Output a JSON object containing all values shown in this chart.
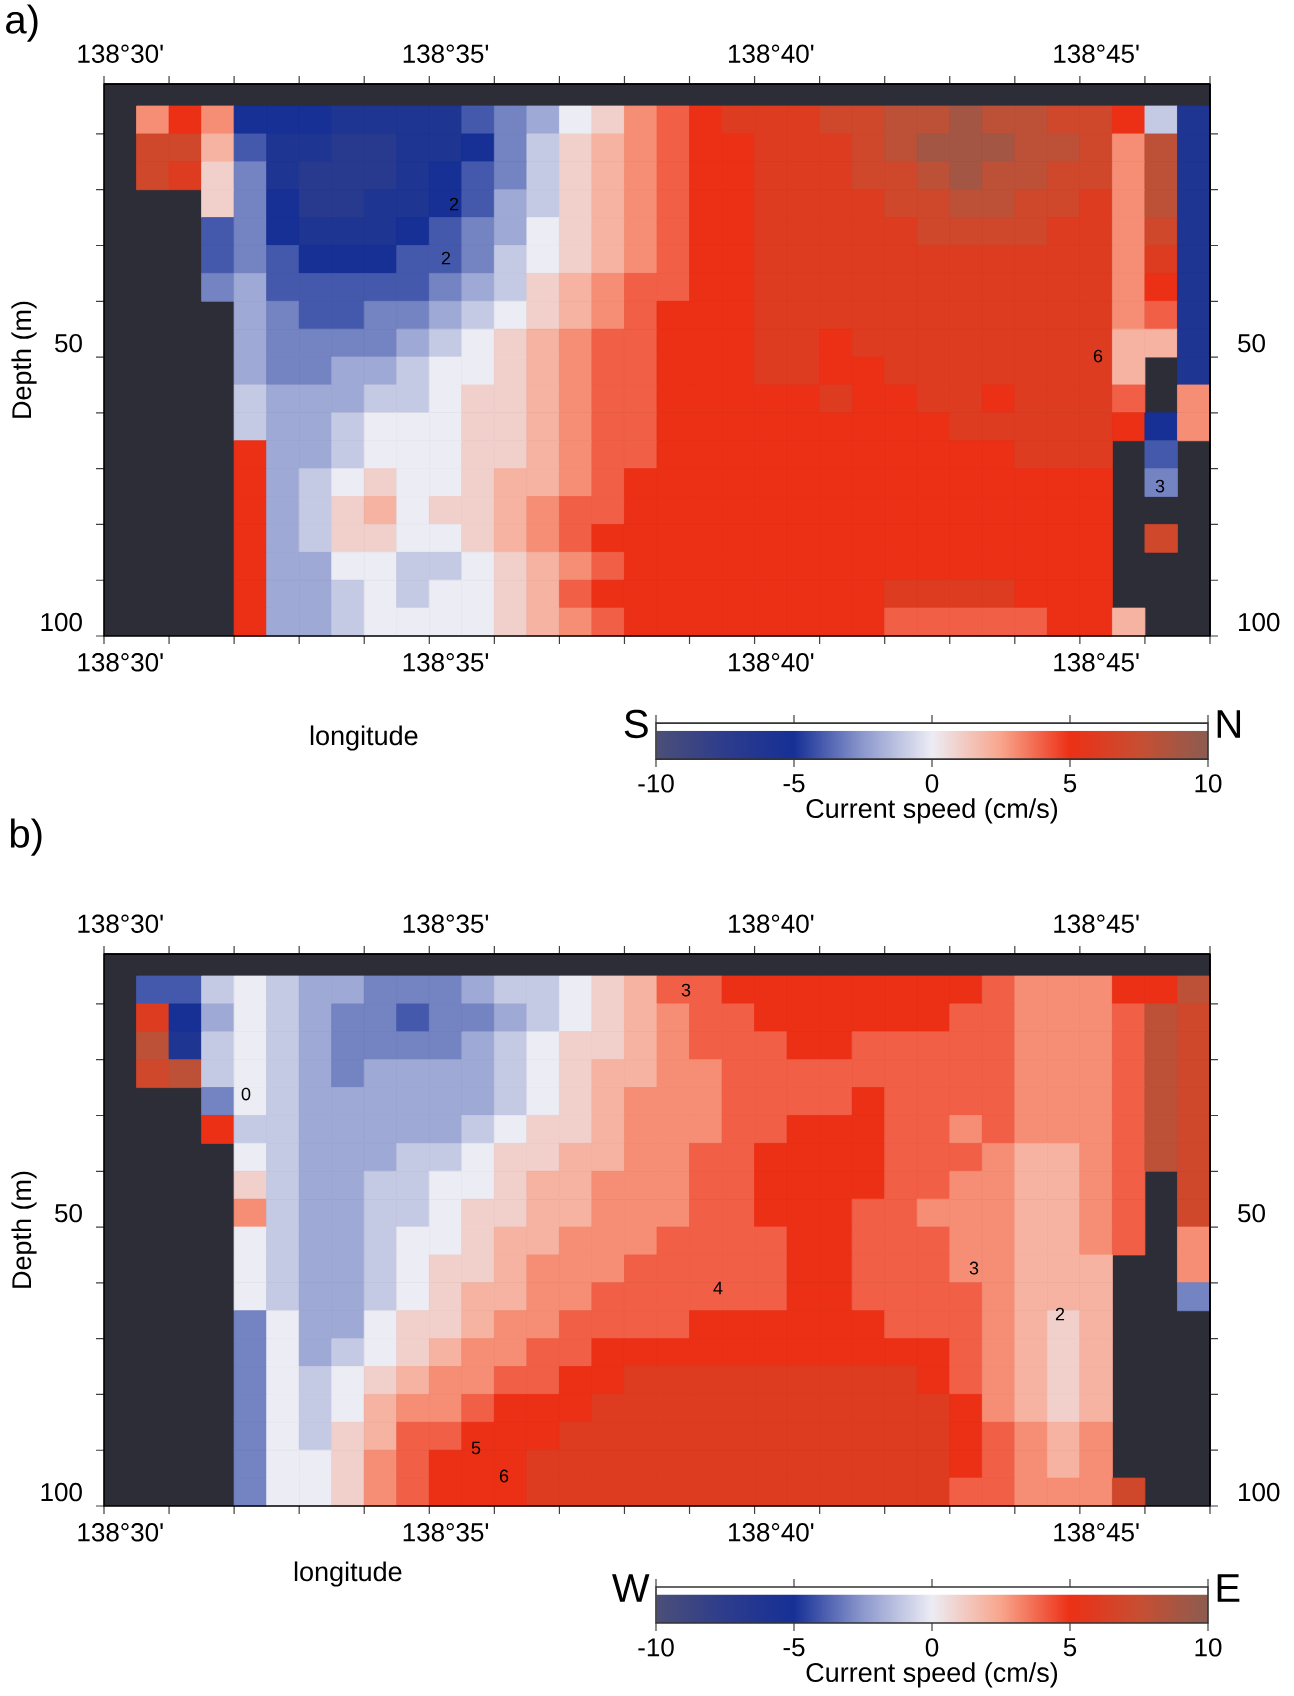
{
  "chart_data": [
    {
      "type": "heatmap",
      "title": "a)",
      "xlabel": "longitude",
      "ylabel": "Depth (m)",
      "clabel": "Current speed (cm/s)",
      "categories": [
        "138°30'",
        null,
        null,
        null,
        null,
        null,
        null,
        null,
        null,
        null,
        "138°35'",
        null,
        null,
        null,
        null,
        null,
        null,
        null,
        null,
        null,
        "138°40'",
        null,
        null,
        null,
        null,
        null,
        null,
        null,
        null,
        null,
        "138°45'",
        null,
        null,
        null
      ],
      "y_categories": [
        null,
        null,
        null,
        null,
        null,
        null,
        null,
        null,
        "50",
        null,
        null,
        null,
        null,
        null,
        null,
        null,
        null,
        null,
        "100"
      ],
      "y2_categories": [
        null,
        null,
        null,
        null,
        null,
        null,
        null,
        null,
        "50",
        null,
        null,
        null,
        null,
        null,
        null,
        null,
        null,
        null,
        "100"
      ],
      "cells": [
        [
          null,
          3,
          5,
          3,
          -5,
          -5,
          -5,
          -6,
          -6,
          -6,
          -6,
          -4,
          -3,
          -2,
          0,
          1,
          3,
          4,
          5,
          6,
          6,
          6,
          7,
          7,
          8,
          8,
          9,
          8,
          8,
          7,
          7,
          5,
          -1,
          -6
        ],
        [
          null,
          7,
          7,
          2,
          -4,
          -6,
          -6,
          -7,
          -7,
          -6,
          -6,
          -5,
          -3,
          -1,
          1,
          2,
          3,
          4,
          5,
          5,
          6,
          6,
          6,
          7,
          8,
          9,
          9,
          9,
          8,
          8,
          7,
          3,
          8,
          -6
        ],
        [
          null,
          7,
          6,
          1,
          -3,
          -6,
          -7,
          -7,
          -7,
          -6,
          -5,
          -4,
          -3,
          -1,
          1,
          2,
          3,
          4,
          5,
          5,
          6,
          6,
          6,
          7,
          7,
          8,
          9,
          8,
          8,
          7,
          7,
          3,
          8,
          -6
        ],
        [
          null,
          null,
          null,
          1,
          -3,
          -5,
          -7,
          -7,
          -6,
          -6,
          -5,
          -4,
          -2,
          -1,
          1,
          2,
          3,
          4,
          5,
          5,
          6,
          6,
          6,
          6,
          7,
          7,
          8,
          8,
          7,
          7,
          6,
          3,
          8,
          -6
        ],
        [
          null,
          null,
          null,
          -4,
          -3,
          -5,
          -6,
          -6,
          -6,
          -5,
          -4,
          -3,
          -2,
          0,
          1,
          2,
          3,
          4,
          5,
          5,
          6,
          6,
          6,
          6,
          6,
          7,
          7,
          7,
          7,
          6,
          6,
          3,
          7,
          -6
        ],
        [
          null,
          null,
          null,
          -4,
          -3,
          -4,
          -5,
          -5,
          -5,
          -4,
          -4,
          -3,
          -1,
          0,
          1,
          2,
          3,
          4,
          5,
          5,
          6,
          6,
          6,
          6,
          6,
          6,
          6,
          6,
          6,
          6,
          6,
          3,
          6,
          -6
        ],
        [
          null,
          null,
          null,
          -3,
          -2,
          -4,
          -4,
          -4,
          -4,
          -4,
          -3,
          -2,
          -1,
          1,
          2,
          3,
          4,
          4,
          5,
          5,
          6,
          6,
          6,
          6,
          6,
          6,
          6,
          6,
          6,
          6,
          6,
          3,
          5,
          -6
        ],
        [
          null,
          null,
          null,
          null,
          -2,
          -3,
          -4,
          -4,
          -3,
          -3,
          -2,
          -1,
          0,
          1,
          2,
          3,
          4,
          5,
          5,
          5,
          6,
          6,
          6,
          6,
          6,
          6,
          6,
          6,
          6,
          6,
          6,
          3,
          4,
          -6
        ],
        [
          null,
          null,
          null,
          null,
          -2,
          -3,
          -3,
          -3,
          -3,
          -2,
          -1,
          0,
          1,
          2,
          3,
          4,
          4,
          5,
          5,
          5,
          6,
          6,
          5,
          6,
          6,
          6,
          6,
          6,
          6,
          6,
          6,
          2,
          2,
          -6
        ],
        [
          null,
          null,
          null,
          null,
          -2,
          -3,
          -3,
          -2,
          -2,
          -1,
          0,
          0,
          1,
          2,
          3,
          4,
          4,
          5,
          5,
          5,
          6,
          6,
          5,
          5,
          6,
          6,
          6,
          6,
          6,
          6,
          6,
          2,
          null,
          -6
        ],
        [
          null,
          null,
          null,
          null,
          -1,
          -2,
          -2,
          -2,
          -1,
          -1,
          0,
          1,
          1,
          2,
          3,
          4,
          4,
          5,
          5,
          5,
          5,
          5,
          6,
          5,
          5,
          6,
          6,
          5,
          6,
          6,
          6,
          4,
          null,
          3
        ],
        [
          null,
          null,
          null,
          null,
          -1,
          -2,
          -2,
          -1,
          0,
          0,
          0,
          1,
          1,
          2,
          3,
          4,
          4,
          5,
          5,
          5,
          5,
          5,
          5,
          5,
          5,
          5,
          6,
          6,
          6,
          6,
          6,
          5,
          -5,
          3
        ],
        [
          null,
          null,
          null,
          null,
          5,
          -2,
          -2,
          -1,
          0,
          0,
          0,
          1,
          1,
          2,
          3,
          4,
          4,
          5,
          5,
          5,
          5,
          5,
          5,
          5,
          5,
          5,
          5,
          5,
          6,
          6,
          6,
          null,
          -4,
          null
        ],
        [
          null,
          null,
          null,
          null,
          5,
          -2,
          -1,
          0,
          1,
          0,
          0,
          1,
          2,
          2,
          3,
          4,
          5,
          5,
          5,
          5,
          5,
          5,
          5,
          5,
          5,
          5,
          5,
          5,
          5,
          5,
          5,
          null,
          -3,
          null
        ],
        [
          null,
          null,
          null,
          null,
          5,
          -2,
          -1,
          1,
          2,
          0,
          1,
          1,
          2,
          3,
          4,
          4,
          5,
          5,
          5,
          5,
          5,
          5,
          5,
          5,
          5,
          5,
          5,
          5,
          5,
          5,
          5,
          null,
          null,
          null
        ],
        [
          null,
          null,
          null,
          null,
          5,
          -2,
          -1,
          1,
          1,
          0,
          0,
          1,
          2,
          3,
          4,
          5,
          5,
          5,
          5,
          5,
          5,
          5,
          5,
          5,
          5,
          5,
          5,
          5,
          5,
          5,
          5,
          null,
          7,
          null
        ],
        [
          null,
          null,
          null,
          null,
          5,
          -2,
          -2,
          0,
          0,
          -1,
          -1,
          0,
          1,
          2,
          3,
          4,
          5,
          5,
          5,
          5,
          5,
          5,
          5,
          5,
          5,
          5,
          5,
          5,
          5,
          5,
          5,
          null,
          null,
          null
        ],
        [
          null,
          null,
          null,
          null,
          5,
          -2,
          -2,
          -1,
          0,
          -1,
          0,
          0,
          1,
          2,
          4,
          5,
          5,
          5,
          5,
          5,
          5,
          5,
          5,
          5,
          6,
          6,
          6,
          6,
          5,
          5,
          5,
          null,
          null,
          null
        ],
        [
          null,
          null,
          null,
          null,
          5,
          -2,
          -2,
          -1,
          0,
          0,
          0,
          0,
          1,
          2,
          3,
          4,
          5,
          5,
          5,
          5,
          5,
          5,
          5,
          5,
          4,
          4,
          4,
          4,
          4,
          5,
          5,
          2,
          null,
          null
        ]
      ],
      "clim": [
        -10,
        10
      ],
      "cticks": [
        -10,
        -5,
        0,
        5,
        10
      ],
      "annotations": [
        "S",
        "N",
        "2",
        "2",
        "6",
        "3"
      ]
    },
    {
      "type": "heatmap",
      "title": "b)",
      "xlabel": "longitude",
      "ylabel": "Depth (m)",
      "clabel": "Current speed (cm/s)",
      "categories": [
        "138°30'",
        null,
        null,
        null,
        null,
        null,
        null,
        null,
        null,
        null,
        "138°35'",
        null,
        null,
        null,
        null,
        null,
        null,
        null,
        null,
        null,
        "138°40'",
        null,
        null,
        null,
        null,
        null,
        null,
        null,
        null,
        null,
        "138°45'",
        null,
        null,
        null
      ],
      "y_categories": [
        null,
        null,
        null,
        null,
        null,
        null,
        null,
        null,
        "50",
        null,
        null,
        null,
        null,
        null,
        null,
        null,
        null,
        null,
        "100"
      ],
      "y2_categories": [
        null,
        null,
        null,
        null,
        null,
        null,
        null,
        null,
        "50",
        null,
        null,
        null,
        null,
        null,
        null,
        null,
        null,
        null,
        "100"
      ],
      "cells": [
        [
          null,
          -4,
          -4,
          -1,
          0,
          -1,
          -2,
          -2,
          -3,
          -3,
          -3,
          -2,
          -1,
          -1,
          0,
          1,
          2,
          4,
          4,
          5,
          5,
          5,
          5,
          5,
          5,
          5,
          5,
          4,
          3,
          3,
          3,
          5,
          5,
          8
        ],
        [
          null,
          6,
          -5,
          -2,
          0,
          -1,
          -2,
          -3,
          -3,
          -4,
          -3,
          -3,
          -2,
          -1,
          0,
          1,
          2,
          3,
          4,
          4,
          5,
          5,
          5,
          5,
          5,
          5,
          4,
          4,
          3,
          3,
          3,
          4,
          8,
          7
        ],
        [
          null,
          8,
          -6,
          -1,
          0,
          -1,
          -2,
          -3,
          -3,
          -3,
          -3,
          -2,
          -1,
          0,
          1,
          1,
          2,
          3,
          4,
          4,
          4,
          5,
          5,
          4,
          4,
          4,
          4,
          4,
          3,
          3,
          3,
          4,
          8,
          7
        ],
        [
          null,
          7,
          8,
          -1,
          0,
          -1,
          -2,
          -3,
          -2,
          -2,
          -2,
          -2,
          -1,
          0,
          1,
          2,
          2,
          3,
          3,
          4,
          4,
          4,
          4,
          4,
          4,
          4,
          4,
          4,
          3,
          3,
          3,
          4,
          8,
          7
        ],
        [
          null,
          null,
          null,
          -3,
          0,
          -1,
          -2,
          -2,
          -2,
          -2,
          -2,
          -2,
          -1,
          0,
          1,
          2,
          3,
          3,
          3,
          4,
          4,
          4,
          4,
          5,
          4,
          4,
          4,
          4,
          3,
          3,
          3,
          4,
          8,
          7
        ],
        [
          null,
          null,
          null,
          5,
          -1,
          -1,
          -2,
          -2,
          -2,
          -2,
          -2,
          -1,
          0,
          1,
          1,
          2,
          3,
          3,
          3,
          4,
          4,
          5,
          5,
          5,
          4,
          4,
          3,
          4,
          3,
          3,
          3,
          4,
          8,
          7
        ],
        [
          null,
          null,
          null,
          null,
          0,
          -1,
          -2,
          -2,
          -2,
          -1,
          -1,
          0,
          1,
          1,
          2,
          2,
          3,
          3,
          4,
          4,
          5,
          5,
          5,
          5,
          4,
          4,
          4,
          3,
          2,
          2,
          3,
          4,
          8,
          7
        ],
        [
          null,
          null,
          null,
          null,
          1,
          -1,
          -2,
          -2,
          -1,
          -1,
          0,
          0,
          1,
          2,
          2,
          3,
          3,
          3,
          4,
          4,
          5,
          5,
          5,
          5,
          4,
          4,
          3,
          3,
          2,
          2,
          3,
          4,
          null,
          7
        ],
        [
          null,
          null,
          null,
          null,
          3,
          -1,
          -2,
          -2,
          -1,
          -1,
          0,
          1,
          1,
          2,
          2,
          3,
          3,
          3,
          4,
          4,
          5,
          5,
          5,
          4,
          4,
          3,
          3,
          3,
          2,
          2,
          3,
          4,
          null,
          7
        ],
        [
          null,
          null,
          null,
          null,
          0,
          -1,
          -2,
          -2,
          -1,
          0,
          0,
          1,
          2,
          2,
          3,
          3,
          3,
          4,
          4,
          4,
          4,
          5,
          5,
          4,
          4,
          4,
          3,
          3,
          2,
          2,
          3,
          4,
          null,
          3
        ],
        [
          null,
          null,
          null,
          null,
          0,
          -1,
          -2,
          -2,
          -1,
          0,
          1,
          1,
          2,
          3,
          3,
          3,
          4,
          4,
          4,
          4,
          4,
          5,
          5,
          4,
          4,
          4,
          3,
          3,
          2,
          2,
          2,
          null,
          null,
          3
        ],
        [
          null,
          null,
          null,
          null,
          0,
          -1,
          -2,
          -2,
          -1,
          0,
          1,
          2,
          2,
          3,
          3,
          4,
          4,
          4,
          4,
          4,
          4,
          5,
          5,
          4,
          4,
          4,
          4,
          3,
          2,
          2,
          2,
          null,
          null,
          -3
        ],
        [
          null,
          null,
          null,
          null,
          -3,
          0,
          -2,
          -2,
          0,
          1,
          1,
          2,
          3,
          3,
          4,
          4,
          4,
          4,
          5,
          5,
          5,
          5,
          5,
          5,
          4,
          4,
          4,
          3,
          2,
          1,
          2,
          null,
          null,
          null
        ],
        [
          null,
          null,
          null,
          null,
          -3,
          0,
          -2,
          -1,
          0,
          1,
          2,
          3,
          3,
          4,
          4,
          5,
          5,
          5,
          5,
          5,
          5,
          5,
          5,
          5,
          5,
          5,
          4,
          3,
          2,
          1,
          2,
          null,
          null,
          null
        ],
        [
          null,
          null,
          null,
          null,
          -3,
          0,
          -1,
          0,
          1,
          2,
          3,
          3,
          4,
          4,
          5,
          5,
          6,
          6,
          6,
          6,
          6,
          6,
          6,
          6,
          6,
          5,
          4,
          3,
          2,
          1,
          2,
          null,
          null,
          null
        ],
        [
          null,
          null,
          null,
          null,
          -3,
          0,
          -1,
          0,
          2,
          3,
          3,
          4,
          5,
          5,
          5,
          6,
          6,
          6,
          6,
          6,
          6,
          6,
          6,
          6,
          6,
          6,
          5,
          3,
          2,
          1,
          2,
          null,
          null,
          null
        ],
        [
          null,
          null,
          null,
          null,
          -3,
          0,
          -1,
          1,
          2,
          4,
          4,
          5,
          5,
          5,
          6,
          6,
          6,
          6,
          6,
          6,
          6,
          6,
          6,
          6,
          6,
          6,
          5,
          4,
          3,
          2,
          3,
          null,
          null,
          null
        ],
        [
          null,
          null,
          null,
          null,
          -3,
          0,
          0,
          1,
          3,
          4,
          5,
          5,
          5,
          6,
          6,
          6,
          6,
          6,
          6,
          6,
          6,
          6,
          6,
          6,
          6,
          6,
          5,
          4,
          3,
          2,
          3,
          null,
          null,
          null
        ],
        [
          null,
          null,
          null,
          null,
          -3,
          0,
          0,
          1,
          3,
          4,
          5,
          5,
          5,
          6,
          6,
          6,
          6,
          6,
          6,
          6,
          6,
          6,
          6,
          6,
          6,
          6,
          4,
          4,
          3,
          3,
          3,
          7,
          null,
          null
        ]
      ],
      "clim": [
        -10,
        10
      ],
      "cticks": [
        -10,
        -5,
        0,
        5,
        10
      ],
      "annotations": [
        "W",
        "E",
        "0",
        "3",
        "4",
        "3",
        "2",
        "5",
        "6"
      ]
    }
  ]
}
